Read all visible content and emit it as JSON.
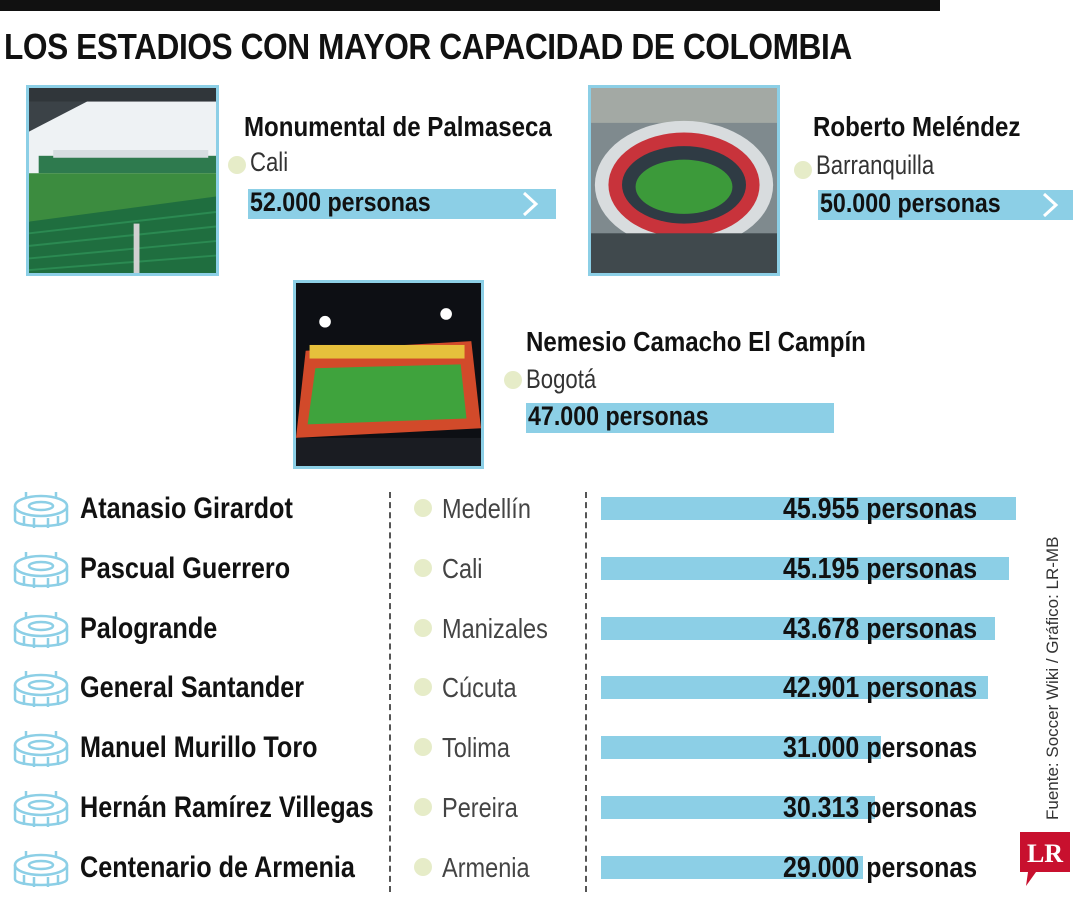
{
  "title": "LOS ESTADIOS CON MAYOR CAPACIDAD DE COLOMBIA",
  "source": "Fuente: Soccer Wiki / Gráfico: LR-MB",
  "logo_text": "LR",
  "colors": {
    "bar": "#8ccfe6",
    "dot": "#e6ecc8",
    "logo": "#c8102e",
    "text": "#111111"
  },
  "featured": [
    {
      "name": "Monumental de Palmaseca",
      "city": "Cali",
      "label": "52.000 personas",
      "value": 52000
    },
    {
      "name": "Roberto Meléndez",
      "city": "Barranquilla",
      "label": "50.000 personas",
      "value": 50000
    },
    {
      "name": "Nemesio Camacho El Campín",
      "city": "Bogotá",
      "label": "47.000 personas",
      "value": 47000
    }
  ],
  "rows": [
    {
      "name": "Atanasio Girardot",
      "city": "Medellín",
      "label": "45.955 personas",
      "value": 45955
    },
    {
      "name": "Pascual Guerrero",
      "city": "Cali",
      "label": "45.195 personas",
      "value": 45195
    },
    {
      "name": "Palogrande",
      "city": "Manizales",
      "label": "43.678 personas",
      "value": 43678
    },
    {
      "name": "General Santander",
      "city": "Cúcuta",
      "label": "42.901 personas",
      "value": 42901
    },
    {
      "name": "Manuel Murillo Toro",
      "city": "Tolima",
      "label": "31.000 personas",
      "value": 31000
    },
    {
      "name": "Hernán Ramírez Villegas",
      "city": "Pereira",
      "label": "30.313 personas",
      "value": 30313
    },
    {
      "name": "Centenario de Armenia",
      "city": "Armenia",
      "label": "29.000 personas",
      "value": 29000
    }
  ],
  "chart_data": {
    "type": "bar",
    "title": "LOS ESTADIOS CON MAYOR CAPACIDAD DE COLOMBIA",
    "categories": [
      "Monumental de Palmaseca",
      "Roberto Meléndez",
      "Nemesio Camacho El Campín",
      "Atanasio Girardot",
      "Pascual Guerrero",
      "Palogrande",
      "General Santander",
      "Manuel Murillo Toro",
      "Hernán Ramírez Villegas",
      "Centenario de Armenia"
    ],
    "values": [
      52000,
      50000,
      47000,
      45955,
      45195,
      43678,
      42901,
      31000,
      30313,
      29000
    ],
    "xlabel": "",
    "ylabel": ""
  }
}
